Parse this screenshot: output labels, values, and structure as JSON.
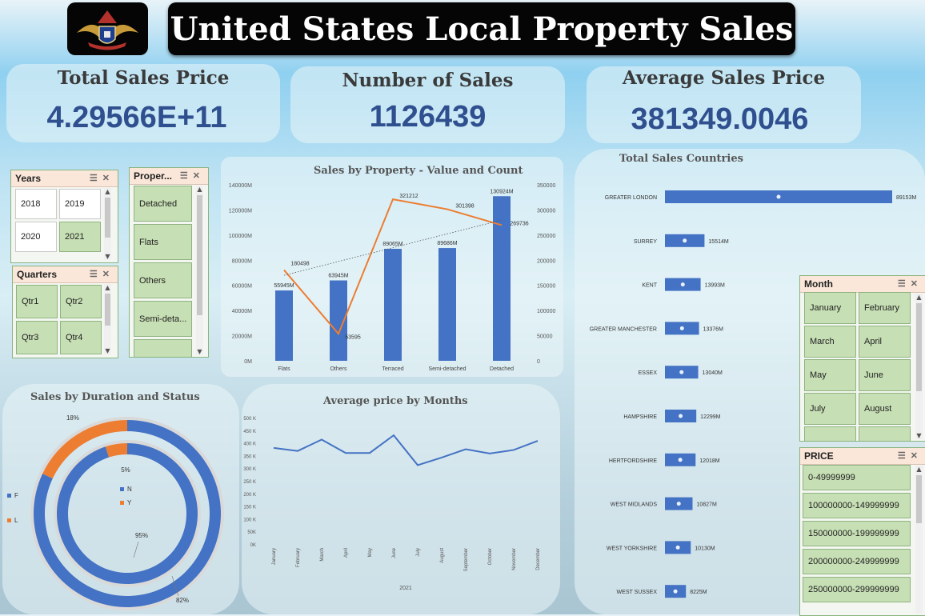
{
  "header": {
    "title": "United States Local Property Sales",
    "logo": "military-crest-logo"
  },
  "kpis": {
    "total_sales": {
      "label": "Total Sales Price",
      "value": "4.29566E+11"
    },
    "num_sales": {
      "label": "Number of Sales",
      "value": "1126439"
    },
    "avg_price": {
      "label": "Average Sales Price",
      "value": "381349.0046"
    }
  },
  "slicers": {
    "years": {
      "title": "Years",
      "items": [
        "2018",
        "2019",
        "2020",
        "2021"
      ],
      "selected": [
        "2021"
      ]
    },
    "quarters": {
      "title": "Quarters",
      "items": [
        "Qtr1",
        "Qtr2",
        "Qtr3",
        "Qtr4"
      ]
    },
    "property": {
      "title": "Proper...",
      "items": [
        "Detached",
        "Flats",
        "Others",
        "Semi-deta..."
      ]
    },
    "month": {
      "title": "Month",
      "items": [
        "January",
        "February",
        "March",
        "April",
        "May",
        "June",
        "July",
        "August"
      ]
    },
    "price": {
      "title": "PRICE",
      "items": [
        "0-49999999",
        "100000000-149999999",
        "150000000-199999999",
        "200000000-249999999",
        "250000000-299999999"
      ]
    }
  },
  "chart_data": [
    {
      "type": "bar",
      "title": "Sales by Property - Value and Count",
      "categories": [
        "Flats",
        "Others",
        "Terraced",
        "Semi-detached",
        "Detached"
      ],
      "series": [
        {
          "type": "bar",
          "values": [
            55945,
            63945,
            89065,
            89686,
            130924
          ],
          "labels": [
            "55945M",
            "63945M",
            "89065M",
            "89686M",
            "130924M"
          ]
        },
        {
          "type": "line",
          "values": [
            180498,
            53595,
            321212,
            301398,
            269736
          ],
          "labels": [
            "180498",
            "53595",
            "321212",
            "301398",
            "269736"
          ]
        }
      ],
      "y_left": {
        "ticks": [
          "0M",
          "20000M",
          "40000M",
          "60000M",
          "80000M",
          "100000M",
          "120000M",
          "140000M"
        ],
        "ylim": [
          0,
          140000
        ]
      },
      "y_right": {
        "ticks": [
          "0",
          "50000",
          "100000",
          "150000",
          "200000",
          "250000",
          "300000",
          "350000"
        ],
        "ylim": [
          0,
          350000
        ]
      },
      "trendline": "dotted"
    },
    {
      "type": "bar",
      "orientation": "horizontal",
      "title": "Total Sales Countries",
      "categories": [
        "GREATER LONDON",
        "SURREY",
        "KENT",
        "GREATER MANCHESTER",
        "ESSEX",
        "HAMPSHIRE",
        "HERTFORDSHIRE",
        "WEST MIDLANDS",
        "WEST YORKSHIRE",
        "WEST SUSSEX"
      ],
      "values": [
        89153,
        15514,
        13993,
        13376,
        13040,
        12299,
        12018,
        10827,
        10130,
        8225
      ],
      "labels": [
        "89153M",
        "15514M",
        "13993M",
        "13376M",
        "13040M",
        "12299M",
        "12018M",
        "10827M",
        "10130M",
        "8225M"
      ]
    },
    {
      "type": "pie",
      "title": "Sales by Duration and Status",
      "rings": [
        {
          "series": "outer",
          "slices": [
            {
              "name": "F",
              "value": 82,
              "label": "82%"
            },
            {
              "name": "L",
              "value": 18,
              "label": "18%"
            }
          ]
        },
        {
          "series": "inner",
          "slices": [
            {
              "name": "N",
              "value": 95,
              "label": "95%"
            },
            {
              "name": "Y",
              "value": 5,
              "label": "5%"
            }
          ]
        }
      ],
      "legend_outer": [
        "F",
        "L"
      ],
      "legend_inner": [
        "N",
        "Y"
      ]
    },
    {
      "type": "line",
      "title": "Average price by Months",
      "categories": [
        "January",
        "February",
        "March",
        "April",
        "May",
        "June",
        "July",
        "August",
        "September",
        "October",
        "November",
        "December"
      ],
      "values": [
        380,
        368,
        413,
        360,
        360,
        430,
        312,
        342,
        375,
        358,
        372,
        408
      ],
      "y_ticks": [
        "0K",
        "50K",
        "100 K",
        "150 K",
        "200 K",
        "250 K",
        "300 K",
        "350 K",
        "400 K",
        "450 K",
        "500 K"
      ],
      "ylim": [
        0,
        500
      ],
      "xlabel": "2021"
    }
  ],
  "colors": {
    "bar": "#4472c4",
    "line": "#ed7d31",
    "slicer_selected": "#c6dfb4",
    "kpi_value": "#2f4f8f"
  }
}
